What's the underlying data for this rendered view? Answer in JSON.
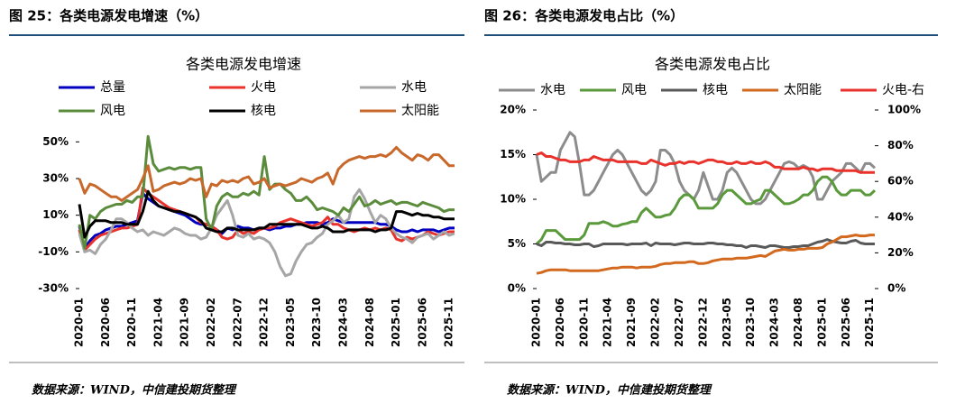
{
  "captions": [
    "图 25：各类电源发电增速（%）",
    "图 26：各类电源发电占比（%）"
  ],
  "sources": [
    "数据来源：WIND，中信建投期货整理",
    "数据来源：WIND，中信建投期货整理"
  ],
  "chart_data": [
    {
      "type": "line",
      "title": "各类电源发电增速",
      "categories": [
        "2020-01",
        null,
        null,
        null,
        null,
        "2020-06",
        null,
        null,
        null,
        null,
        "2020-11",
        null,
        null,
        null,
        null,
        "2021-04",
        null,
        null,
        null,
        null,
        "2021-09",
        null,
        null,
        null,
        null,
        "2022-02",
        null,
        null,
        null,
        null,
        "2022-07",
        null,
        null,
        null,
        null,
        "2022-12",
        null,
        null,
        null,
        null,
        "2023-05",
        null,
        null,
        null,
        null,
        "2023-10",
        null,
        null,
        null,
        null,
        "2024-03",
        null,
        null,
        null,
        null,
        "2024-08",
        null,
        null,
        null,
        null,
        "2025-01",
        null,
        null,
        null,
        null,
        "2025-06",
        null,
        null,
        null,
        null,
        "2025-11",
        null
      ],
      "ylim": [
        -30,
        60
      ],
      "yticks": [
        {
          "value": -30,
          "label": "-30%"
        },
        {
          "value": -10,
          "label": "-10%"
        },
        {
          "value": 10,
          "label": "10%"
        },
        {
          "value": 30,
          "label": "30%"
        },
        {
          "value": 50,
          "label": "50%"
        }
      ],
      "series": [
        {
          "name": "总量",
          "color": "#0000c0",
          "values": [
            4,
            -8,
            -4,
            -1,
            0,
            2,
            3,
            4,
            4,
            5,
            6,
            7,
            22,
            19,
            17,
            15,
            14,
            13,
            12,
            11,
            10,
            8,
            6,
            5,
            5,
            4,
            2,
            0,
            3,
            2,
            4,
            3,
            3,
            2,
            3,
            3,
            2,
            3,
            3,
            4,
            4,
            5,
            5,
            6,
            6,
            6,
            5,
            6,
            8,
            7,
            6,
            6,
            6,
            6,
            6,
            6,
            6,
            5,
            5,
            4,
            2,
            1,
            1,
            2,
            1,
            2,
            2,
            2,
            1,
            2,
            3,
            3
          ]
        },
        {
          "name": "火电",
          "color": "#e8322b",
          "values": [
            2,
            -9,
            -6,
            -3,
            -1,
            0,
            1,
            2,
            3,
            3,
            4,
            5,
            25,
            22,
            20,
            18,
            16,
            14,
            13,
            12,
            11,
            10,
            9,
            6,
            5,
            4,
            2,
            -2,
            -3,
            -2,
            2,
            0,
            1,
            0,
            2,
            3,
            3,
            4,
            6,
            7,
            8,
            7,
            6,
            5,
            4,
            5,
            6,
            9,
            5,
            5,
            3,
            2,
            1,
            2,
            3,
            2,
            3,
            2,
            3,
            2,
            -3,
            -4,
            -2,
            -3,
            -2,
            -1,
            1,
            0,
            -1,
            0,
            1,
            1
          ]
        },
        {
          "name": "水电",
          "color": "#a6a6a6",
          "values": [
            0,
            -10,
            -9,
            -11,
            -6,
            -3,
            2,
            8,
            8,
            6,
            3,
            1,
            2,
            -1,
            1,
            0,
            -1,
            1,
            3,
            2,
            0,
            -1,
            -1,
            -3,
            -2,
            3,
            10,
            14,
            18,
            10,
            -1,
            -2,
            0,
            -3,
            -2,
            -3,
            -5,
            -10,
            -18,
            -23,
            -22,
            -15,
            -10,
            -6,
            -5,
            -2,
            0,
            5,
            7,
            10,
            6,
            8,
            20,
            24,
            19,
            12,
            6,
            10,
            8,
            3,
            0,
            -2,
            -3,
            -5,
            -2,
            -1,
            0,
            -3,
            -1,
            1,
            -1,
            0
          ]
        },
        {
          "name": "风电",
          "color": "#5a8c3c",
          "values": [
            5,
            -8,
            10,
            8,
            12,
            14,
            15,
            16,
            16,
            18,
            17,
            20,
            20,
            53,
            38,
            34,
            35,
            36,
            35,
            36,
            36,
            35,
            36,
            36,
            8,
            2,
            15,
            20,
            22,
            20,
            20,
            22,
            21,
            23,
            21,
            42,
            24,
            27,
            27,
            24,
            22,
            18,
            18,
            20,
            17,
            13,
            14,
            13,
            12,
            10,
            14,
            12,
            16,
            20,
            15,
            16,
            18,
            16,
            17,
            18,
            16,
            17,
            17,
            16,
            15,
            17,
            16,
            15,
            14,
            12,
            13,
            13
          ]
        },
        {
          "name": "核电",
          "color": "#000000",
          "values": [
            16,
            -2,
            4,
            7,
            7,
            7,
            6,
            6,
            6,
            5,
            5,
            5,
            12,
            23,
            18,
            15,
            14,
            13,
            12,
            12,
            11,
            10,
            9,
            7,
            3,
            2,
            1,
            1,
            3,
            3,
            2,
            2,
            2,
            2,
            3,
            3,
            5,
            5,
            5,
            5,
            5,
            5,
            5,
            4,
            3,
            3,
            4,
            3,
            1,
            1,
            1,
            2,
            2,
            2,
            2,
            2,
            1,
            2,
            2,
            3,
            12,
            12,
            11,
            10,
            11,
            10,
            10,
            9,
            9,
            8,
            8,
            8
          ]
        },
        {
          "name": "太阳能",
          "color": "#c8682a",
          "values": [
            30,
            22,
            27,
            26,
            24,
            22,
            20,
            20,
            18,
            20,
            22,
            24,
            30,
            37,
            23,
            24,
            26,
            27,
            28,
            27,
            28,
            30,
            29,
            30,
            20,
            27,
            26,
            29,
            28,
            29,
            28,
            30,
            31,
            27,
            28,
            30,
            25,
            26,
            27,
            26,
            27,
            28,
            30,
            29,
            28,
            30,
            31,
            33,
            27,
            35,
            38,
            40,
            41,
            42,
            41,
            42,
            42,
            43,
            42,
            44,
            47,
            44,
            42,
            40,
            43,
            42,
            40,
            43,
            43,
            40,
            37,
            37
          ]
        }
      ]
    },
    {
      "type": "line",
      "title": "各类电源发电占比",
      "categories": [
        "2020-01",
        null,
        null,
        null,
        null,
        "2020-06",
        null,
        null,
        null,
        null,
        "2020-11",
        null,
        null,
        null,
        null,
        "2021-04",
        null,
        null,
        null,
        null,
        "2021-09",
        null,
        null,
        null,
        null,
        "2022-02",
        null,
        null,
        null,
        null,
        "2022-07",
        null,
        null,
        null,
        null,
        "2022-12",
        null,
        null,
        null,
        null,
        "2023-05",
        null,
        null,
        null,
        null,
        "2023-10",
        null,
        null,
        null,
        null,
        "2024-03",
        null,
        null,
        null,
        null,
        "2024-08",
        null,
        null,
        null,
        null,
        "2025-01",
        null,
        null,
        null,
        null,
        "2025-06",
        null,
        null,
        null,
        null,
        "2025-11",
        null
      ],
      "ylim": [
        0,
        20
      ],
      "yticks": [
        {
          "value": 0,
          "label": "0%"
        },
        {
          "value": 5,
          "label": "5%"
        },
        {
          "value": 10,
          "label": "10%"
        },
        {
          "value": 15,
          "label": "15%"
        },
        {
          "value": 20,
          "label": "20%"
        }
      ],
      "y2lim": [
        0,
        100
      ],
      "y2ticks": [
        {
          "value": 0,
          "label": "0%"
        },
        {
          "value": 20,
          "label": "20%"
        },
        {
          "value": 40,
          "label": "40%"
        },
        {
          "value": 60,
          "label": "60%"
        },
        {
          "value": 80,
          "label": "80%"
        },
        {
          "value": 100,
          "label": "100%"
        }
      ],
      "series": [
        {
          "name": "水电",
          "color": "#8c8c8c",
          "values": [
            15,
            12,
            12.5,
            13,
            13,
            15.5,
            16.5,
            17.5,
            17,
            14,
            10.5,
            10.5,
            11,
            12,
            13,
            14,
            15,
            15.5,
            15,
            14,
            13,
            12,
            11,
            10.5,
            11,
            12,
            15.5,
            15.5,
            15,
            14,
            12,
            11,
            10.5,
            10,
            11,
            13,
            11.5,
            10,
            10,
            11,
            13,
            13.5,
            13,
            12,
            11,
            10,
            9.5,
            9.5,
            10,
            11,
            12,
            13,
            14,
            14.2,
            14,
            13.5,
            13.8,
            13.5,
            12.5,
            10,
            10,
            11,
            12,
            12.5,
            13,
            14,
            14,
            13.5,
            13,
            14,
            14,
            13.5
          ]
        },
        {
          "name": "风电",
          "color": "#5a9a3c",
          "values": [
            5,
            5.5,
            6.5,
            6.5,
            6.5,
            6,
            5.5,
            5.5,
            5.5,
            5.5,
            6,
            7.3,
            7.3,
            7.3,
            7.5,
            7.3,
            7,
            7,
            7.2,
            7.3,
            7.5,
            7.5,
            8.5,
            9,
            8.5,
            8,
            8,
            8.2,
            8.3,
            9,
            10,
            10.5,
            10.5,
            10,
            9,
            9,
            9,
            9,
            9.5,
            10.5,
            11,
            11,
            10.5,
            10,
            9.5,
            9.5,
            9.8,
            10,
            11,
            11,
            10.5,
            10,
            9.5,
            9.5,
            9.7,
            10,
            10.5,
            10.5,
            11,
            12,
            12.5,
            12.5,
            12,
            11,
            10.5,
            10.5,
            11,
            11,
            11,
            10.5,
            10.5,
            11
          ]
        },
        {
          "name": "核电",
          "color": "#595959",
          "values": [
            5,
            4.8,
            5.2,
            5.2,
            5.1,
            5.1,
            5,
            5,
            4.9,
            4.9,
            5,
            5,
            4.7,
            4.8,
            5,
            5,
            5,
            5,
            5,
            4.9,
            5,
            5,
            5,
            5.1,
            4.8,
            5.1,
            5,
            5,
            5,
            4.9,
            5,
            5.1,
            5.1,
            5,
            5,
            5,
            5.1,
            5.1,
            5,
            5,
            4.9,
            4.9,
            4.8,
            4.8,
            4.6,
            4.8,
            4.8,
            4.7,
            4.6,
            4.8,
            4.8,
            4.7,
            4.6,
            4.6,
            4.7,
            4.7,
            4.8,
            4.8,
            5,
            5.2,
            5.3,
            5.5,
            5.3,
            5.2,
            5.1,
            5.1,
            5.3,
            5.4,
            5.1,
            5,
            5,
            5
          ]
        },
        {
          "name": "太阳能",
          "color": "#d2691e",
          "values": [
            1.7,
            1.8,
            2,
            2.1,
            2.1,
            2.1,
            2.1,
            2,
            2,
            2,
            2,
            2,
            2,
            2,
            2.1,
            2.2,
            2.3,
            2.3,
            2.4,
            2.4,
            2.4,
            2.3,
            2.4,
            2.4,
            2.4,
            2.5,
            2.7,
            2.8,
            2.8,
            2.9,
            2.9,
            2.9,
            3,
            3,
            2.8,
            2.8,
            2.9,
            3.1,
            3.2,
            3.3,
            3.3,
            3.3,
            3.4,
            3.4,
            3.4,
            3.5,
            3.6,
            3.7,
            3.6,
            3.9,
            4.2,
            4.3,
            4.4,
            4.3,
            4.3,
            4.4,
            4.4,
            4.5,
            4.5,
            4.5,
            4.6,
            5,
            5.2,
            5.5,
            5.8,
            5.8,
            5.9,
            6,
            5.9,
            5.9,
            6,
            6
          ]
        },
        {
          "name": "火电-右",
          "color": "#e8322b",
          "axis": "y2",
          "values": [
            75,
            76,
            74,
            74,
            73,
            72,
            72,
            71,
            71,
            71,
            72,
            72,
            74,
            73,
            72,
            72,
            72,
            71,
            71,
            71,
            71,
            71,
            70,
            70,
            72,
            71,
            70,
            69,
            70,
            70,
            71,
            70,
            71,
            71,
            70,
            71,
            72,
            72,
            71,
            71,
            70,
            70,
            71,
            70,
            70,
            71,
            70,
            70,
            71,
            70,
            68,
            68,
            67,
            67,
            67,
            67,
            68,
            67,
            67,
            66,
            67,
            67,
            67,
            66,
            66,
            66,
            66,
            66,
            65,
            65,
            65,
            65
          ]
        }
      ]
    }
  ]
}
